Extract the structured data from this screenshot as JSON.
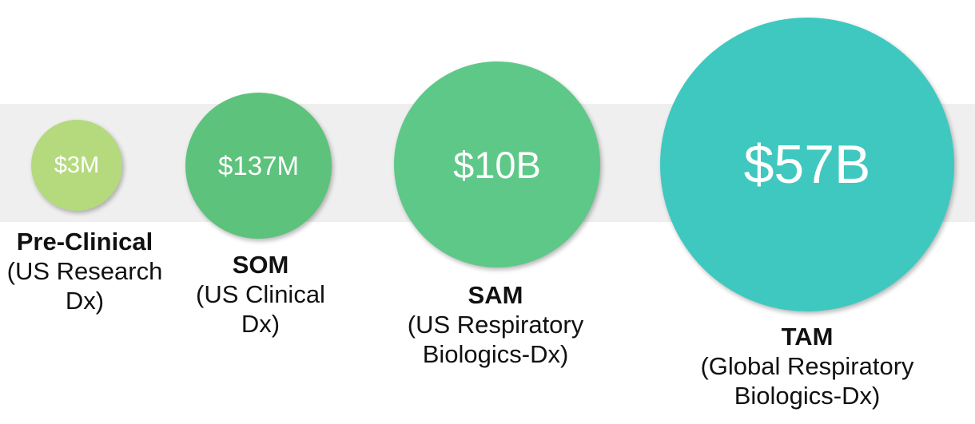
{
  "colors": {
    "background_band": "#efefef",
    "pre_clinical": "#b5da7e",
    "som": "#5cc27c",
    "sam": "#5ec888",
    "tam": "#3fc8bf"
  },
  "items": [
    {
      "key": "pre",
      "value": "$3M",
      "title": "Pre-Clinical",
      "desc_lines": [
        "(US Research",
        "Dx)"
      ]
    },
    {
      "key": "som",
      "value": "$137M",
      "title": "SOM",
      "desc_lines": [
        "(US Clinical",
        "Dx)"
      ]
    },
    {
      "key": "sam",
      "value": "$10B",
      "title": "SAM",
      "desc_lines": [
        "(US Respiratory",
        "Biologics-Dx)"
      ]
    },
    {
      "key": "tam",
      "value": "$57B",
      "title": "TAM",
      "desc_lines": [
        "(Global Respiratory",
        "Biologics-Dx)"
      ]
    }
  ]
}
